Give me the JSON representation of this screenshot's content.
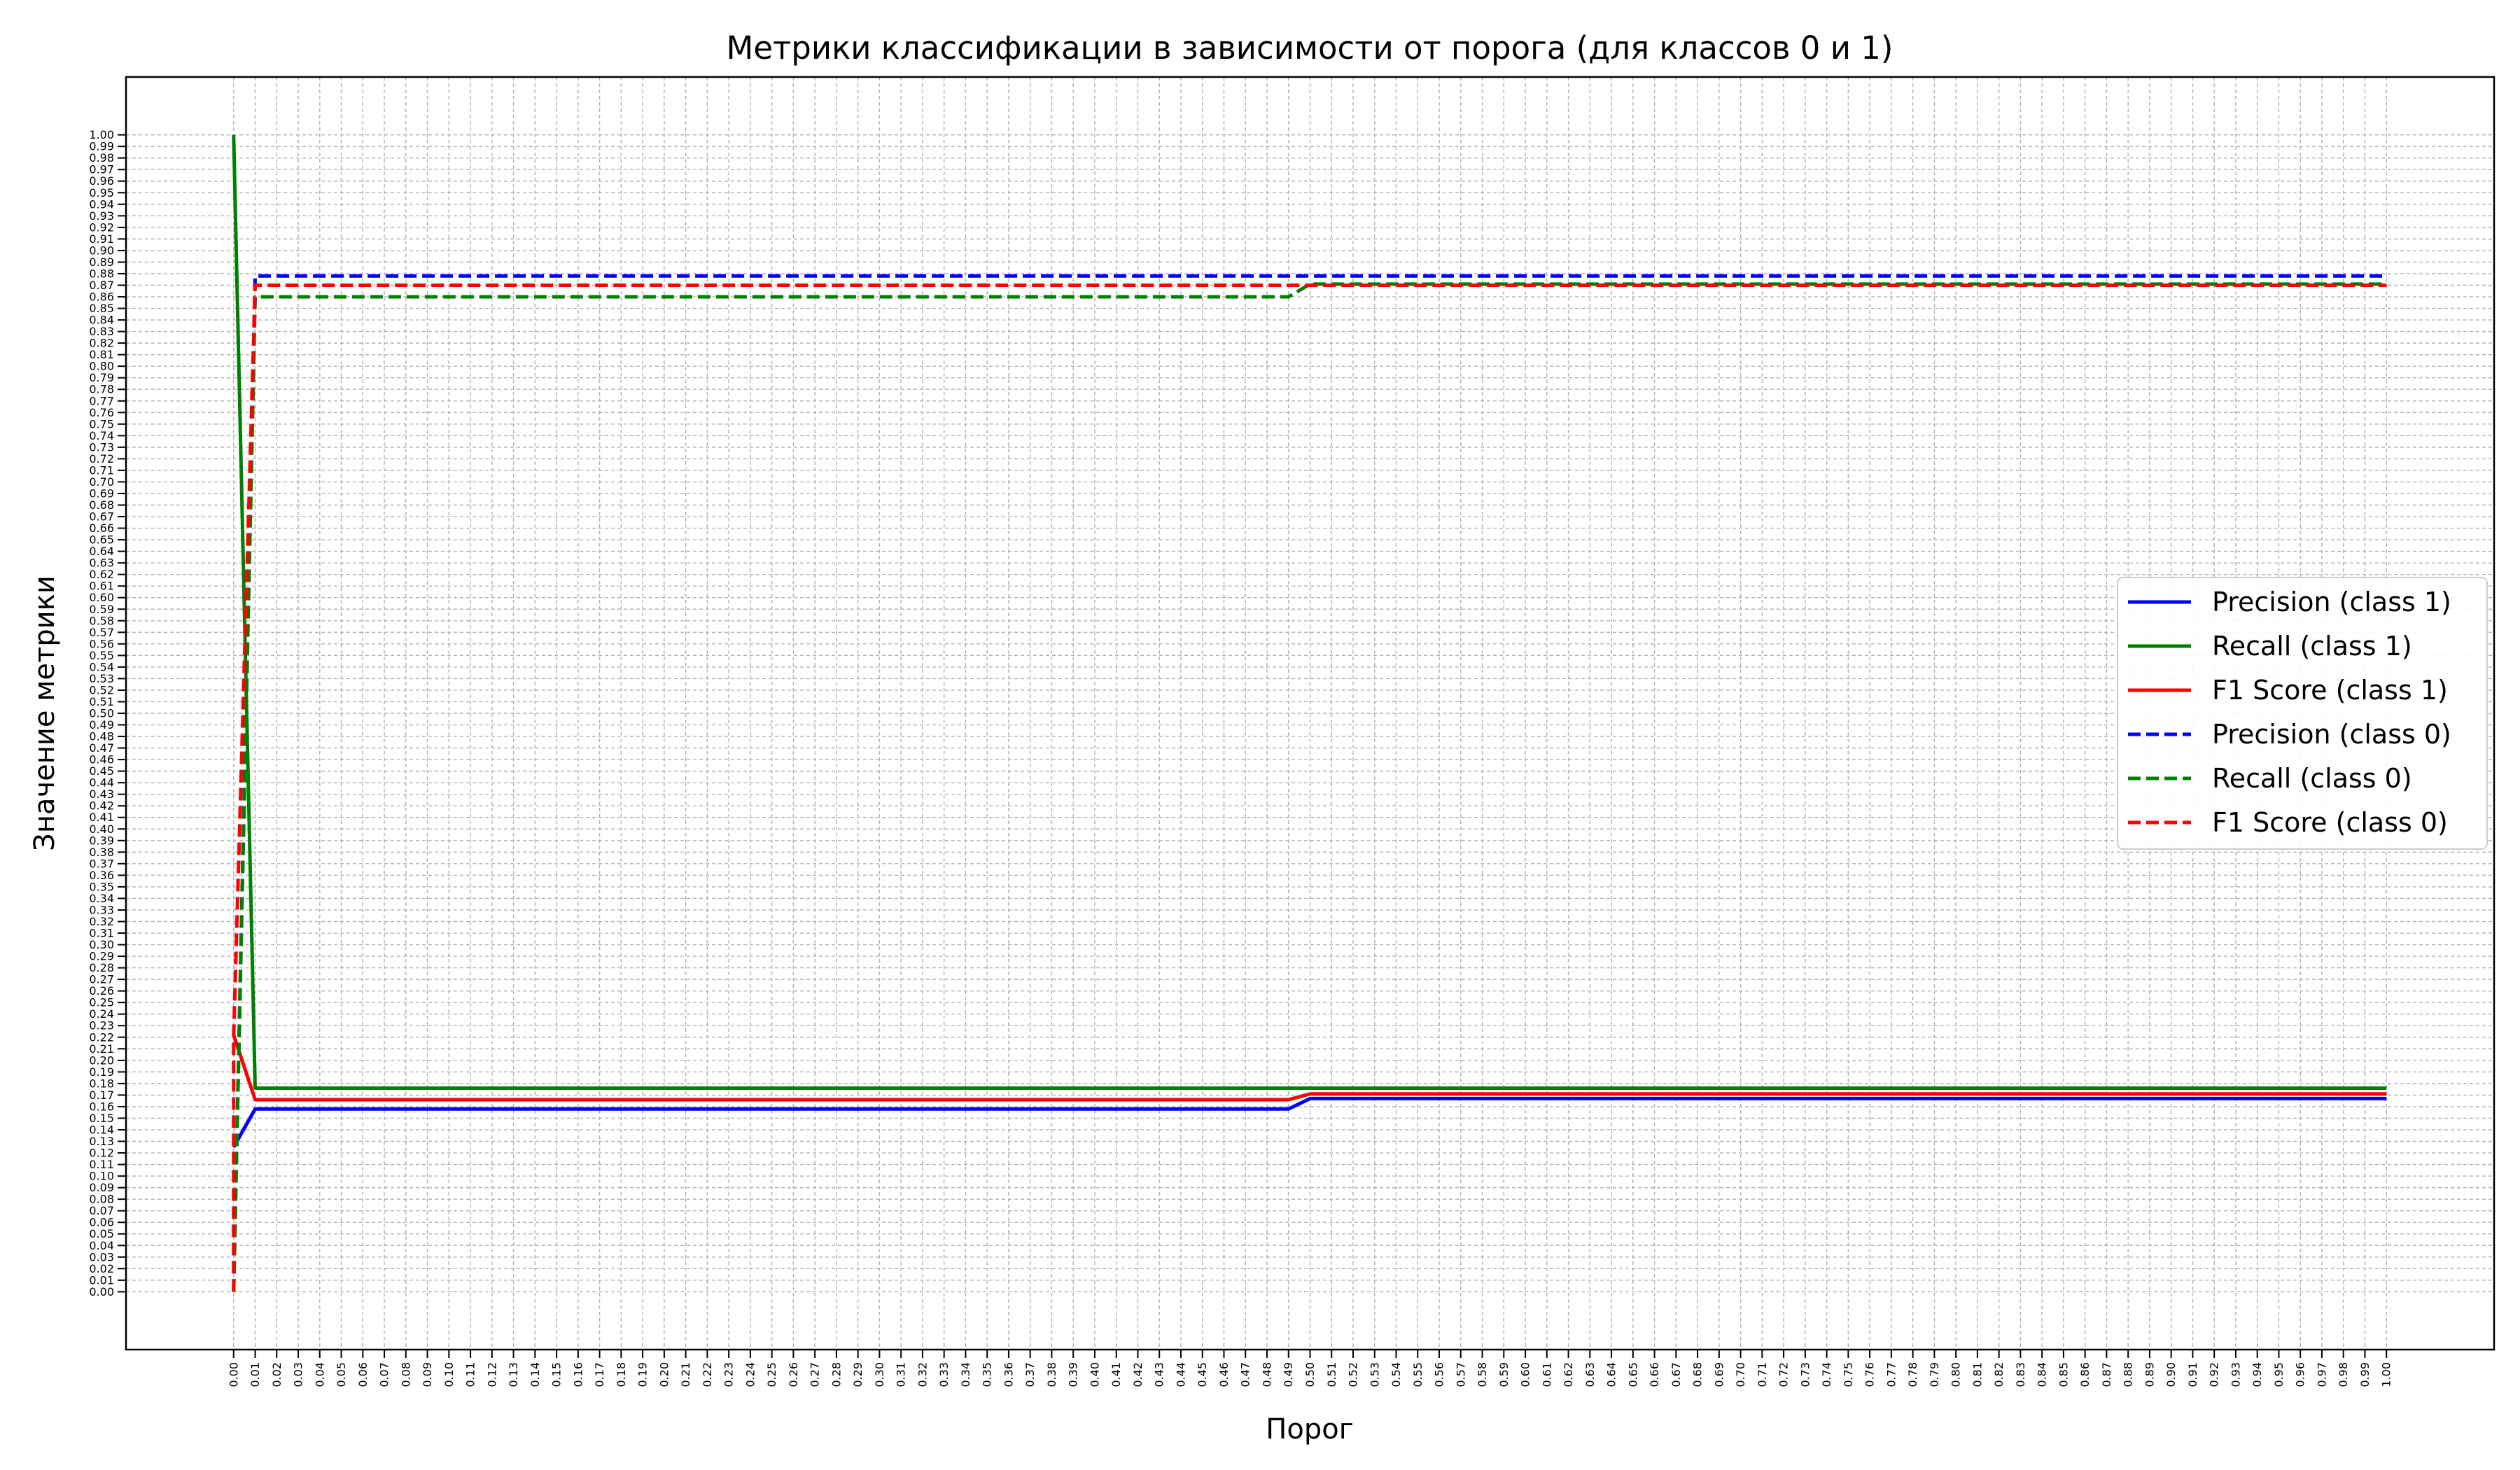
{
  "chart_data": {
    "type": "line",
    "title": "Метрики классификации в зависимости от порога (для классов 0 и 1)",
    "xlabel": "Порог",
    "ylabel": "Значение метрики",
    "xlim": [
      -0.05,
      1.05
    ],
    "ylim": [
      -0.05,
      1.05
    ],
    "x_ticks": {
      "start": 0,
      "end": 1,
      "count": 101,
      "decimals": 2
    },
    "y_ticks": {
      "start": 0,
      "end": 1,
      "count": 101,
      "decimals": 2
    },
    "grid": true,
    "legend_position": "center-right",
    "series": [
      {
        "name": "Precision (class 1)",
        "color": "#0000ff",
        "dash": "solid",
        "x": [
          0.0,
          0.01,
          0.49,
          0.5,
          1.0
        ],
        "y": [
          0.125,
          0.158,
          0.158,
          0.167,
          0.167
        ]
      },
      {
        "name": "Recall (class 1)",
        "color": "#008000",
        "dash": "solid",
        "x": [
          0.0,
          0.01,
          1.0
        ],
        "y": [
          1.0,
          0.176,
          0.176
        ]
      },
      {
        "name": "F1 Score (class 1)",
        "color": "#ff0000",
        "dash": "solid",
        "x": [
          0.0,
          0.01,
          0.49,
          0.5,
          1.0
        ],
        "y": [
          0.222,
          0.166,
          0.166,
          0.171,
          0.171
        ]
      },
      {
        "name": "Precision (class 0)",
        "color": "#0000ff",
        "dash": "dashed",
        "x": [
          0.0,
          0.0,
          0.01,
          1.0
        ],
        "y": [
          0.0,
          0.0,
          0.878,
          0.878
        ]
      },
      {
        "name": "Recall (class 0)",
        "color": "#008000",
        "dash": "dashed",
        "x": [
          0.0,
          0.0,
          0.01,
          0.49,
          0.5,
          1.0
        ],
        "y": [
          0.0,
          0.0,
          0.86,
          0.86,
          0.871,
          0.871
        ]
      },
      {
        "name": "F1 Score (class 0)",
        "color": "#ff0000",
        "dash": "dashed",
        "x": [
          0.0,
          0.0,
          0.01,
          1.0
        ],
        "y": [
          0.0,
          0.22,
          0.87,
          0.87
        ]
      }
    ]
  }
}
